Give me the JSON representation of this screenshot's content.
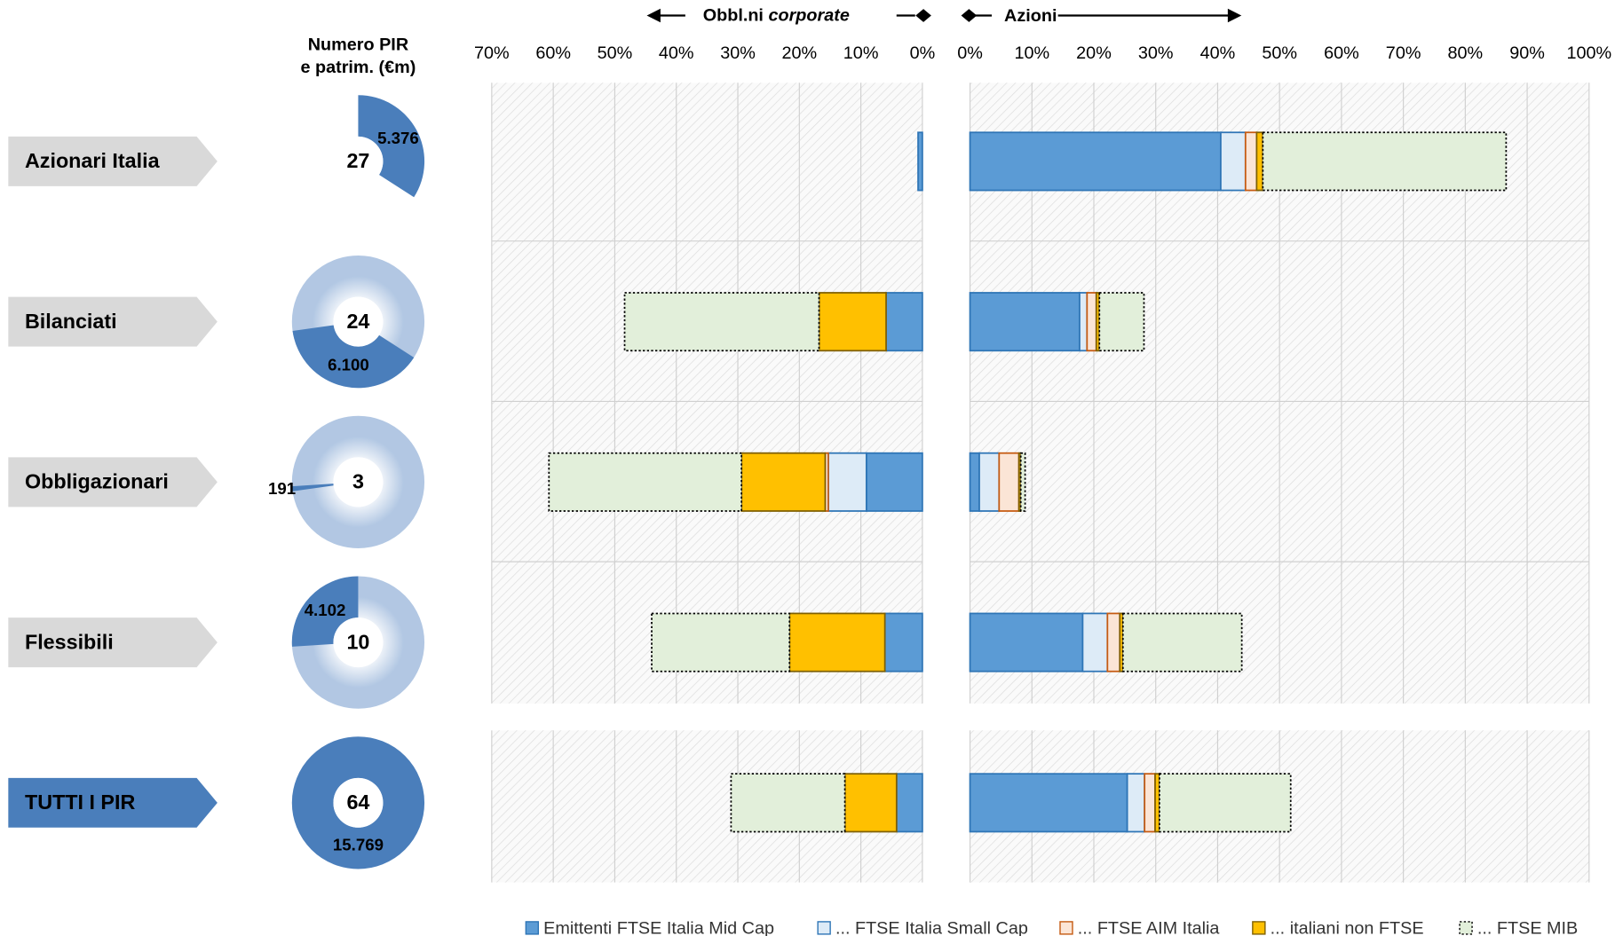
{
  "chart_data": {
    "type": "diverging-stacked-bar",
    "left_title": "Obbl.ni",
    "left_title_italic": "corporate",
    "right_title": "Azioni",
    "donut_title": [
      "Numero PIR",
      "e patrim. (€m)"
    ],
    "categories": [
      "Azionari Italia",
      "Bilanciati",
      "Obbligazionari",
      "Flessibili",
      "TUTTI I PIR"
    ],
    "counts": [
      27,
      24,
      3,
      10,
      64
    ],
    "assets": [
      5376,
      6100,
      191,
      4102,
      15769
    ],
    "asset_labels": [
      "5.376",
      "6.100",
      "191",
      "4.102",
      "15.769"
    ],
    "left_xlim": [
      0,
      70
    ],
    "left_xticks": [
      {
        "value": 70,
        "label": "70%"
      },
      {
        "value": 60,
        "label": "60%"
      },
      {
        "value": 50,
        "label": "50%"
      },
      {
        "value": 40,
        "label": "40%"
      },
      {
        "value": 30,
        "label": "30%"
      },
      {
        "value": 20,
        "label": "20%"
      },
      {
        "value": 10,
        "label": "10%"
      },
      {
        "value": 0,
        "label": "0%"
      }
    ],
    "right_xlim": [
      0,
      100
    ],
    "right_xticks": [
      {
        "value": 0,
        "label": "0%"
      },
      {
        "value": 10,
        "label": "10%"
      },
      {
        "value": 20,
        "label": "20%"
      },
      {
        "value": 30,
        "label": "30%"
      },
      {
        "value": 40,
        "label": "40%"
      },
      {
        "value": 50,
        "label": "50%"
      },
      {
        "value": 60,
        "label": "60%"
      },
      {
        "value": 70,
        "label": "70%"
      },
      {
        "value": 80,
        "label": "80%"
      },
      {
        "value": 90,
        "label": "90%"
      },
      {
        "value": 100,
        "label": "100%"
      }
    ],
    "grid": true,
    "series": [
      {
        "name": "Emittenti FTSE Italia Mid Cap",
        "color": "#5b9bd5",
        "stroke": "#2e75b6",
        "bond_values": [
          0.7,
          5.9,
          9.1,
          6.1,
          4.2
        ],
        "equity_values": [
          40.5,
          17.7,
          1.5,
          18.2,
          25.4
        ]
      },
      {
        "name": "... FTSE Italia Small Cap",
        "color": "#ddebf7",
        "stroke": "#2e75b6",
        "bond_values": [
          0,
          0,
          6.2,
          0,
          0
        ],
        "equity_values": [
          4.0,
          1.2,
          3.2,
          4.0,
          2.8
        ]
      },
      {
        "name": "... FTSE AIM Italia",
        "color": "#fbe5d6",
        "stroke": "#c55a11",
        "bond_values": [
          0,
          0,
          0.5,
          0,
          0
        ],
        "equity_values": [
          1.8,
          1.5,
          3.2,
          2.0,
          1.7
        ]
      },
      {
        "name": "... italiani non FTSE",
        "color": "#ffc000",
        "stroke": "#7f6000",
        "bond_values": [
          0,
          10.9,
          13.6,
          15.5,
          8.4
        ],
        "equity_values": [
          1.0,
          0.5,
          0.3,
          0.5,
          0.7
        ]
      },
      {
        "name": "... FTSE MIB",
        "color": "#e2efda",
        "stroke": "#000000",
        "bond_values": [
          0,
          31.6,
          31.3,
          22.4,
          18.5
        ],
        "equity_values": [
          39.3,
          7.2,
          0.7,
          19.2,
          21.2
        ]
      }
    ]
  }
}
